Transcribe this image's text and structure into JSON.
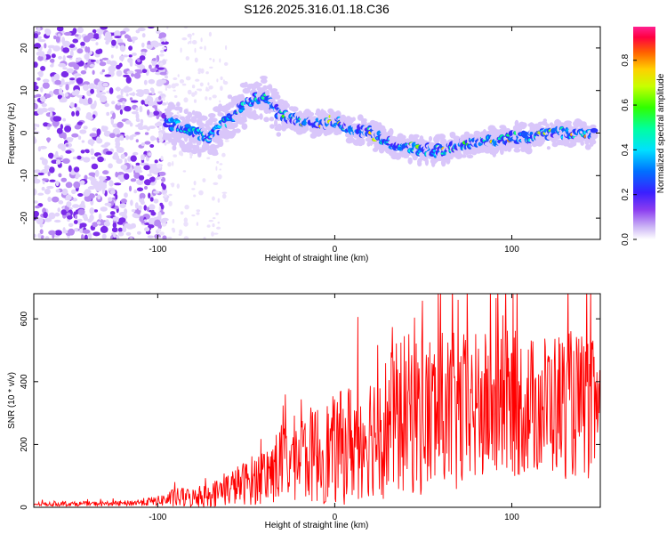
{
  "title": "S126.2025.316.01.18.C36",
  "chart_data": [
    {
      "type": "heatmap",
      "xlabel": "Height of straight line (km)",
      "ylabel": "Frequency (Hz)",
      "xlim": [
        -170,
        150
      ],
      "ylim": [
        -25,
        25
      ],
      "x_ticks": [
        -100,
        0,
        100
      ],
      "x_tick_labels": [
        "-100",
        "0",
        "100"
      ],
      "y_ticks": [
        -20,
        -10,
        0,
        10,
        20
      ],
      "y_tick_labels": [
        "-20",
        "-10",
        "0",
        "10",
        "20"
      ],
      "colorbar": {
        "label": "Normalized spectral amplitude",
        "range": [
          0,
          0.95
        ],
        "ticks": [
          0.0,
          0.2,
          0.4,
          0.6,
          0.8
        ],
        "tick_labels": [
          "0.0",
          "0.2",
          "0.4",
          "0.6",
          "0.8"
        ]
      },
      "ridge": {
        "x": [
          -90,
          -80,
          -70,
          -60,
          -50,
          -40,
          -30,
          -20,
          -10,
          0,
          10,
          20,
          30,
          40,
          50,
          60,
          70,
          80,
          90,
          100,
          110,
          120,
          130,
          145
        ],
        "freq": [
          2,
          0,
          -1,
          3,
          7,
          9,
          4,
          3,
          2,
          3,
          1,
          0,
          -2,
          -3,
          -4,
          -4,
          -3,
          -2,
          -2,
          -1,
          -1,
          0,
          0,
          0
        ],
        "amplitude": [
          0.3,
          0.35,
          0.4,
          0.45,
          0.5,
          0.55,
          0.6,
          0.75,
          0.85,
          0.7,
          0.9,
          0.8,
          0.5,
          0.6,
          0.7,
          0.85,
          0.6,
          0.65,
          0.8,
          0.85,
          0.7,
          0.75,
          0.8,
          0.85
        ]
      }
    },
    {
      "type": "line",
      "xlabel": "Height of straight line (km)",
      "ylabel": "SNR (10 * v/v)",
      "xlim": [
        -170,
        150
      ],
      "ylim": [
        0,
        680
      ],
      "x_ticks": [
        -100,
        0,
        100
      ],
      "x_tick_labels": [
        "-100",
        "0",
        "100"
      ],
      "y_ticks": [
        0,
        200,
        400,
        600
      ],
      "y_tick_labels": [
        "0",
        "200",
        "400",
        "600"
      ],
      "series": [
        {
          "name": "SNR",
          "color": "#ff0000",
          "envelope_x": [
            -170,
            -120,
            -100,
            -90,
            -80,
            -70,
            -60,
            -50,
            -40,
            -30,
            -20,
            -10,
            0,
            10,
            20,
            30,
            40,
            50,
            60,
            70,
            80,
            90,
            100,
            110,
            120,
            130,
            140,
            150
          ],
          "envelope_mean": [
            10,
            12,
            20,
            30,
            30,
            40,
            60,
            80,
            100,
            140,
            160,
            170,
            180,
            210,
            240,
            260,
            300,
            290,
            300,
            290,
            310,
            320,
            330,
            320,
            330,
            330,
            320,
            300
          ],
          "envelope_spread": [
            8,
            10,
            20,
            40,
            40,
            50,
            70,
            90,
            120,
            160,
            180,
            200,
            220,
            250,
            260,
            300,
            320,
            330,
            330,
            330,
            310,
            300,
            300,
            280,
            290,
            300,
            290,
            280
          ]
        }
      ]
    }
  ]
}
